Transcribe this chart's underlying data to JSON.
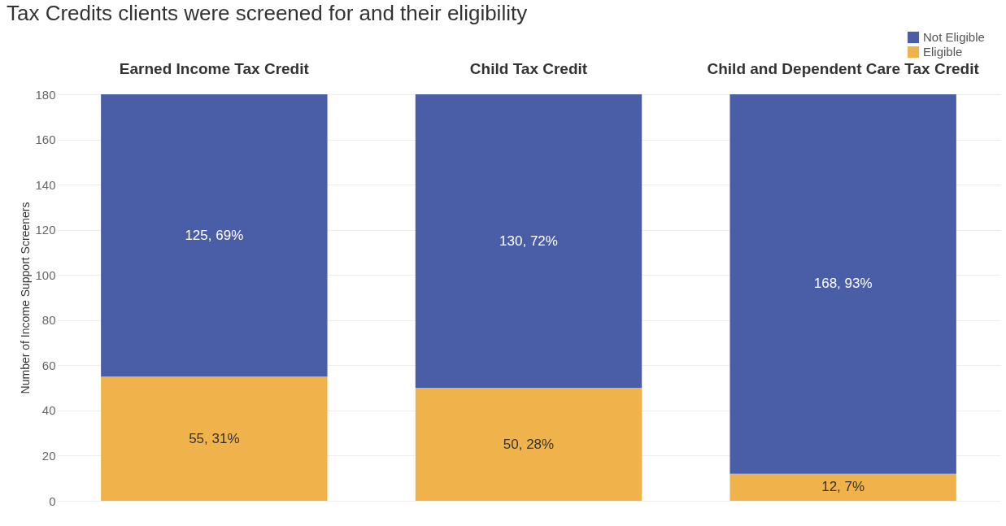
{
  "chart_data": {
    "type": "bar",
    "title": "Tax Credits clients were screened for and their eligibility",
    "ylabel": "Number of Income Support Screeners",
    "categories": [
      "Earned Income Tax Credit",
      "Child Tax Credit",
      "Child and Dependent Care Tax Credit"
    ],
    "stacked": true,
    "series": [
      {
        "name": "Eligible",
        "color": "#f0b34b",
        "values": [
          55,
          50,
          12
        ],
        "value_labels": [
          "55, 31%",
          "50, 28%",
          "12, 7%"
        ]
      },
      {
        "name": "Not Eligible",
        "color": "#4a5ea8",
        "values": [
          125,
          130,
          168
        ],
        "value_labels": [
          "125, 69%",
          "130, 72%",
          "168, 93%"
        ]
      }
    ],
    "ylim": [
      0,
      180
    ],
    "yticks": [
      0,
      20,
      40,
      60,
      80,
      100,
      120,
      140,
      160,
      180
    ],
    "grid": "y",
    "legend": "top right"
  }
}
